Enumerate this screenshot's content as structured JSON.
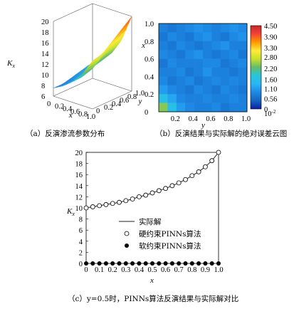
{
  "captions": {
    "a": "（a）反演渗流参数分布",
    "b": "（b）反演结果与实际解的绝对误差云图",
    "c": "（c）y=0.5时，PINNs算法反演结果与实际解对比"
  },
  "chart_data": [
    {
      "id": "a",
      "type": "surface",
      "xlabel": "x",
      "ylabel": "y",
      "zlabel": "K_x",
      "x_ticks": [
        "0",
        "0.2",
        "0.4",
        "0.6",
        "0.8",
        "1.0"
      ],
      "y_ticks": [
        "0",
        "0.2",
        "0.4",
        "0.6",
        "0.8",
        "1.0"
      ],
      "z_ticks": [
        "6",
        "8",
        "10",
        "12",
        "14",
        "16",
        "18",
        "20"
      ],
      "xlim": [
        0,
        1
      ],
      "ylim": [
        0,
        1
      ],
      "zlim": [
        6,
        20
      ],
      "x": [
        0,
        0.25,
        0.5,
        0.75,
        1.0
      ],
      "y": [
        0,
        0.25,
        0.5,
        0.75,
        1.0
      ],
      "z": [
        [
          7.5,
          8.5,
          10.0,
          12.0,
          15.0
        ],
        [
          7.5,
          8.5,
          10.0,
          12.0,
          15.5
        ],
        [
          8.0,
          9.0,
          11.0,
          13.5,
          17.0
        ],
        [
          8.5,
          9.5,
          11.5,
          14.5,
          18.5
        ],
        [
          9.0,
          10.0,
          12.0,
          15.0,
          20.0
        ]
      ],
      "colormap": [
        "#1f2fd0",
        "#1e88e5",
        "#26c6da",
        "#66bb6a",
        "#c6e12a",
        "#ffeb3b",
        "#ff9800",
        "#f44336"
      ]
    },
    {
      "id": "b",
      "type": "heatmap",
      "xlabel": "y",
      "ylabel": "x",
      "x_ticks": [
        "0.2",
        "0.4",
        "0.6",
        "0.8",
        "1.0"
      ],
      "y_ticks": [
        "0",
        "0.2",
        "0.4",
        "0.6",
        "0.8",
        "1.0"
      ],
      "xlim": [
        0,
        1
      ],
      "ylim": [
        0,
        1
      ],
      "colorbar_ticks": [
        "4.50",
        "3.90",
        "3.30",
        "2.80",
        "2.20",
        "1.60",
        "1.10",
        "0.56",
        "0"
      ],
      "colorbar_unit": "10^-2",
      "colorbar_range": [
        0,
        4.5
      ],
      "colorbar_colors": [
        "#0b1fa8",
        "#1565c0",
        "#1e88e5",
        "#29b6f6",
        "#26c6da",
        "#66bb6a",
        "#c6e12a",
        "#ffeb3b",
        "#ff9800",
        "#f44336",
        "#c62828"
      ],
      "grid_values": [
        [
          0.8,
          0.7,
          0.8,
          0.9,
          1.0,
          0.9,
          0.8,
          0.9,
          1.0,
          0.9
        ],
        [
          0.7,
          0.9,
          0.8,
          0.7,
          0.9,
          1.0,
          0.8,
          0.7,
          0.9,
          1.0
        ],
        [
          0.8,
          0.7,
          0.9,
          0.8,
          0.7,
          0.8,
          0.9,
          1.0,
          0.8,
          0.8
        ],
        [
          0.9,
          0.8,
          0.7,
          0.9,
          1.0,
          0.8,
          0.7,
          0.8,
          0.9,
          0.7
        ],
        [
          0.7,
          0.9,
          0.8,
          0.8,
          0.8,
          0.9,
          0.9,
          0.7,
          0.8,
          0.9
        ],
        [
          0.8,
          0.8,
          0.9,
          0.7,
          0.8,
          1.0,
          0.8,
          0.8,
          0.7,
          0.8
        ],
        [
          0.9,
          0.7,
          0.8,
          0.9,
          0.7,
          0.8,
          0.9,
          0.8,
          0.9,
          0.8
        ],
        [
          1.1,
          0.9,
          0.8,
          0.7,
          0.9,
          0.8,
          0.7,
          0.9,
          0.8,
          0.7
        ],
        [
          1.6,
          1.2,
          0.9,
          0.8,
          0.8,
          0.9,
          0.8,
          0.8,
          0.9,
          0.8
        ],
        [
          2.4,
          1.6,
          1.1,
          0.9,
          0.8,
          0.8,
          0.9,
          0.7,
          0.8,
          0.8
        ]
      ]
    },
    {
      "id": "c",
      "type": "line",
      "xlabel": "x",
      "ylabel": "K_x",
      "xlim": [
        0,
        1.0
      ],
      "ylim": [
        0,
        20
      ],
      "x_ticks": [
        "0",
        "0.1",
        "0.2",
        "0.3",
        "0.4",
        "0.5",
        "0.6",
        "0.7",
        "0.8",
        "0.9",
        "1.0"
      ],
      "y_ticks": [
        "0",
        "2",
        "4",
        "6",
        "8",
        "10",
        "12",
        "14",
        "16",
        "18",
        "20"
      ],
      "legend_position": "center",
      "series": [
        {
          "name": "实际解",
          "style": "line",
          "x": [
            0,
            0.05,
            0.1,
            0.15,
            0.2,
            0.25,
            0.3,
            0.35,
            0.4,
            0.45,
            0.5,
            0.55,
            0.6,
            0.65,
            0.7,
            0.75,
            0.8,
            0.85,
            0.9,
            0.95,
            1.0
          ],
          "values": [
            10.0,
            10.2,
            10.4,
            10.6,
            10.8,
            11.0,
            11.3,
            11.6,
            12.0,
            12.3,
            12.7,
            13.1,
            13.5,
            14.0,
            14.5,
            15.1,
            15.8,
            16.5,
            17.4,
            18.5,
            20.0
          ]
        },
        {
          "name": "硬约束PINNs算法",
          "style": "open-circle",
          "x": [
            0,
            0.05,
            0.1,
            0.15,
            0.2,
            0.25,
            0.3,
            0.35,
            0.4,
            0.45,
            0.5,
            0.55,
            0.6,
            0.65,
            0.7,
            0.75,
            0.8,
            0.85,
            0.9,
            0.95,
            1.0
          ],
          "values": [
            10.0,
            10.2,
            10.4,
            10.6,
            10.8,
            11.0,
            11.3,
            11.6,
            12.0,
            12.3,
            12.7,
            13.1,
            13.5,
            14.0,
            14.5,
            15.1,
            15.8,
            16.5,
            17.4,
            18.5,
            20.0
          ]
        },
        {
          "name": "软约束PINNs算法",
          "style": "filled-circle",
          "x": [
            0,
            0.05,
            0.1,
            0.15,
            0.2,
            0.25,
            0.3,
            0.35,
            0.4,
            0.45,
            0.5,
            0.55,
            0.6,
            0.65,
            0.7,
            0.75,
            0.8,
            0.85,
            0.9,
            0.95,
            1.0
          ],
          "values": [
            0,
            0,
            0,
            0,
            0,
            0,
            0,
            0,
            0,
            0,
            0,
            0,
            0,
            0,
            0,
            0,
            0,
            0,
            0,
            0,
            0
          ]
        }
      ]
    }
  ]
}
